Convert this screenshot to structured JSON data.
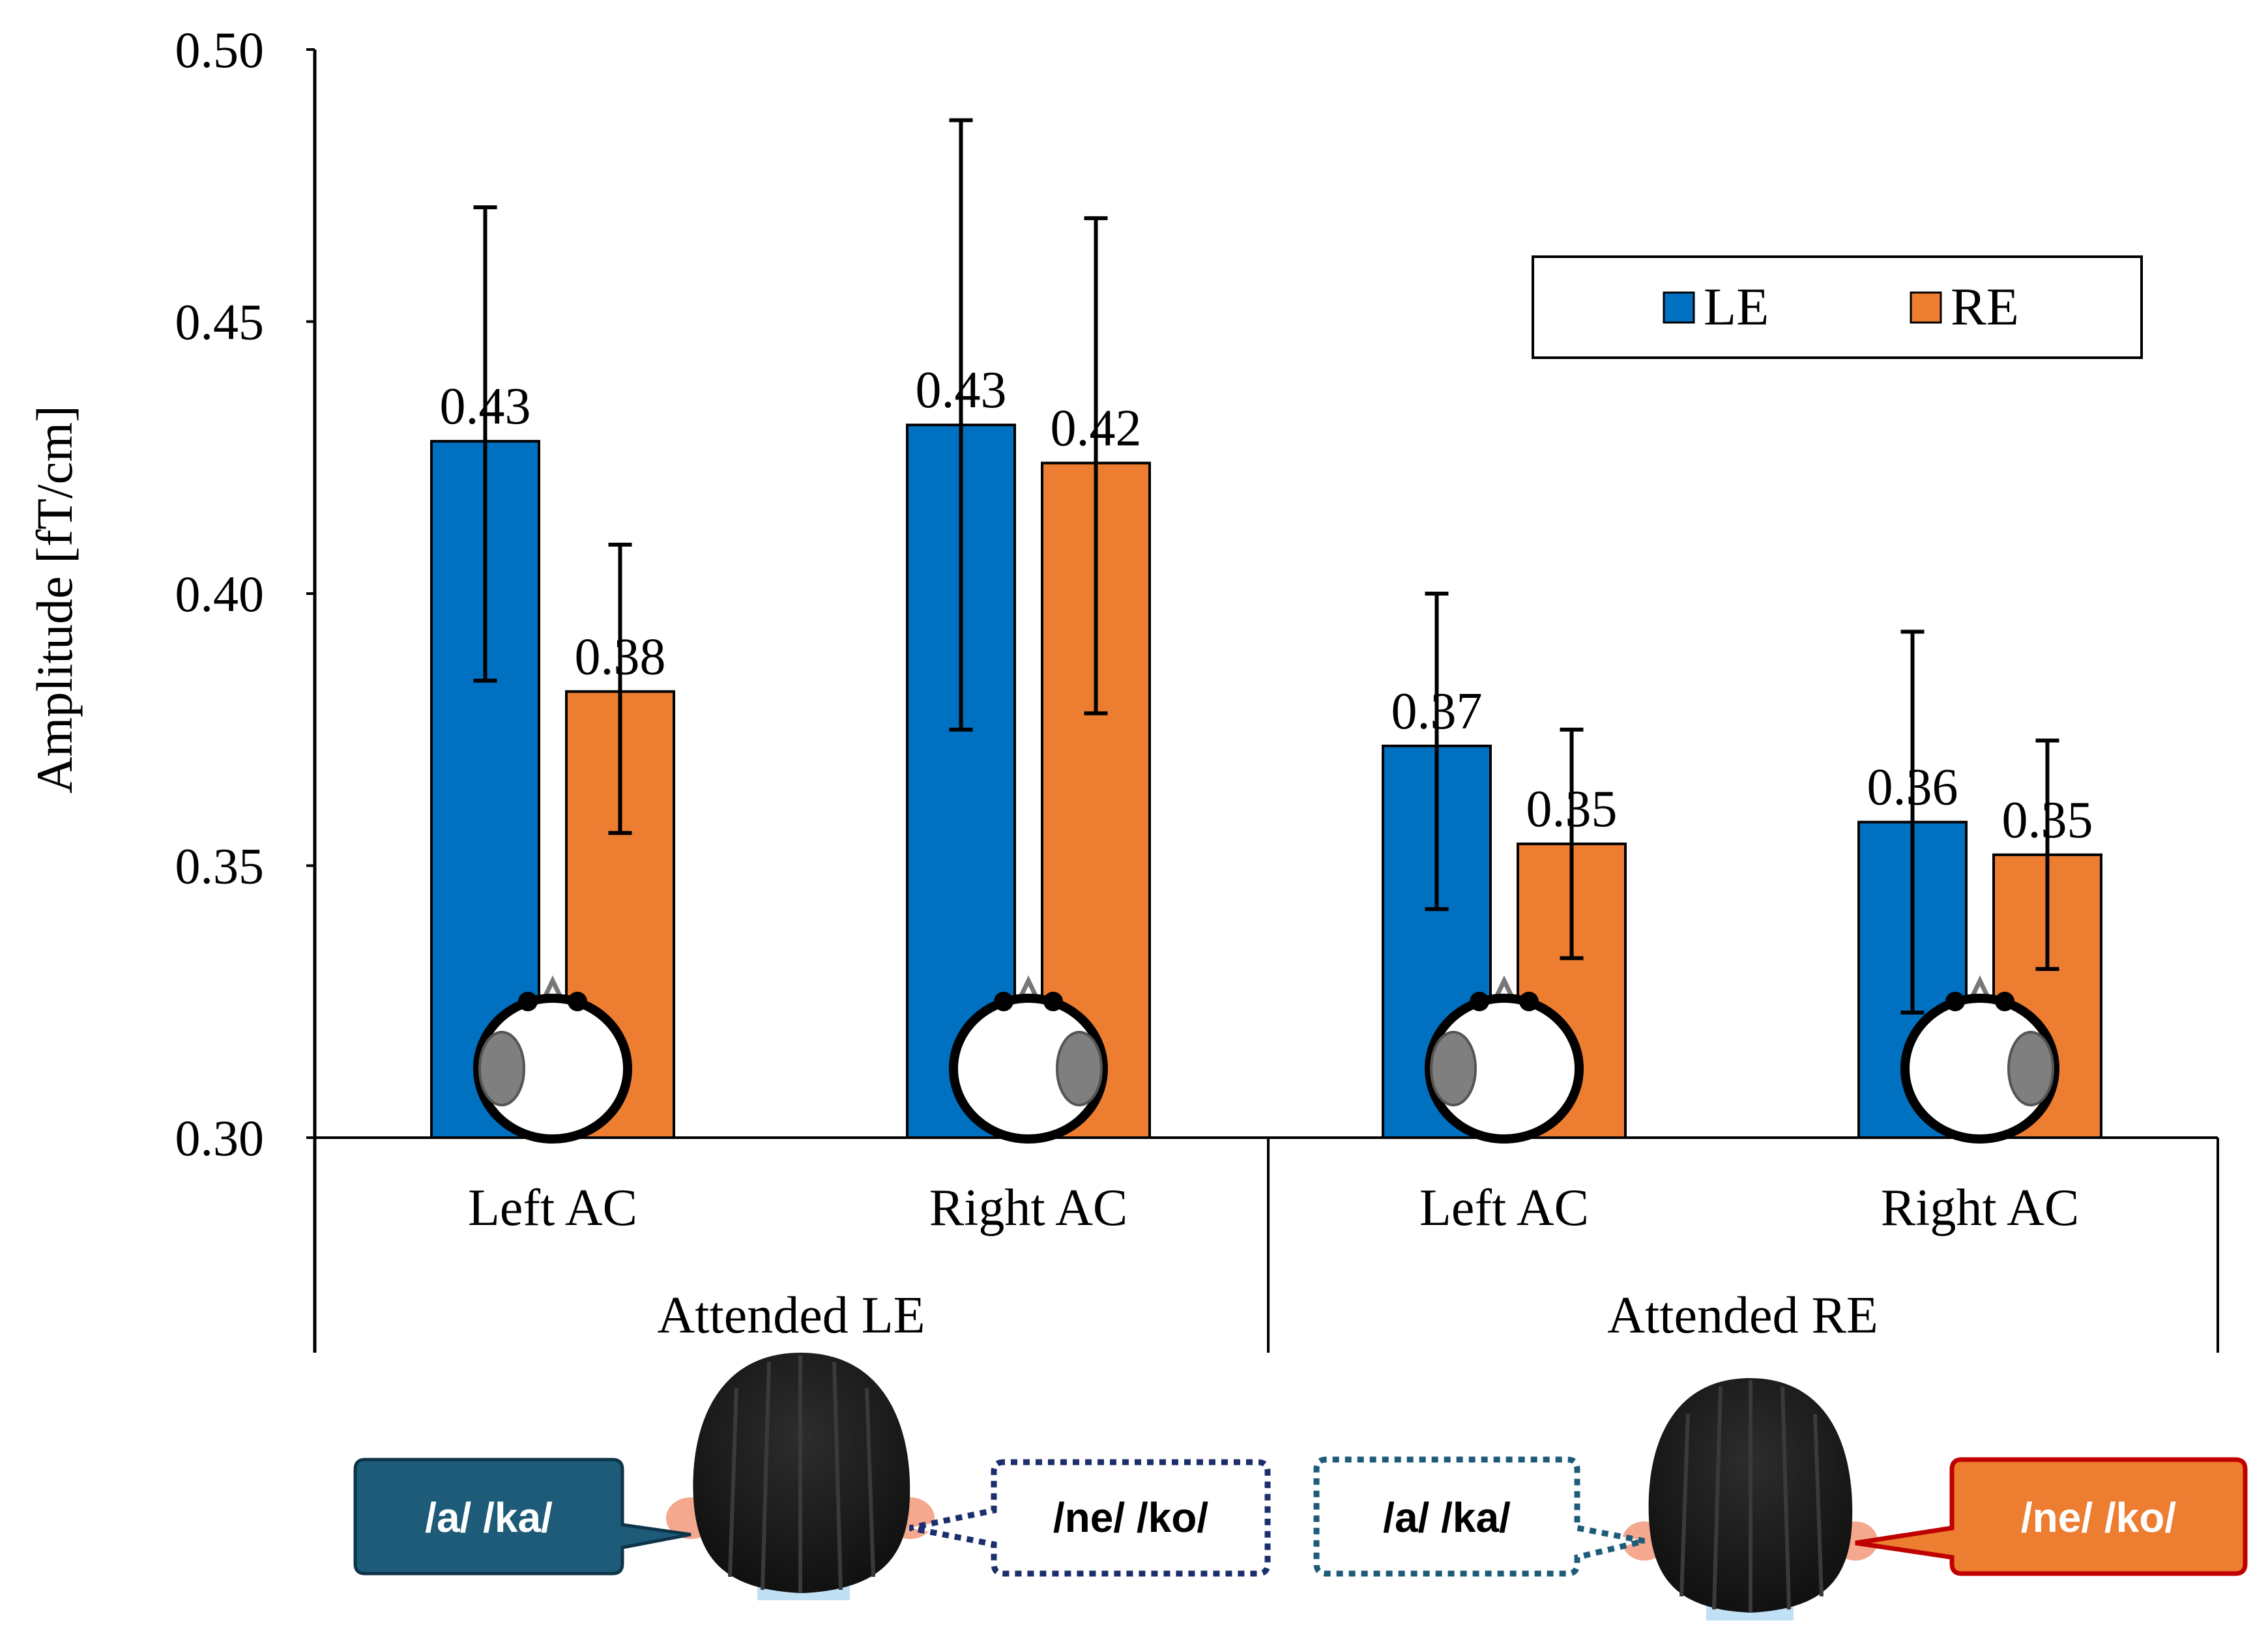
{
  "chart_data": {
    "type": "bar",
    "ylabel": "Amplitude [fT/cm]",
    "ylim": [
      0.3,
      0.5
    ],
    "yticks": [
      "0.30",
      "0.35",
      "0.40",
      "0.45",
      "0.50"
    ],
    "ytick_values": [
      0.3,
      0.35,
      0.4,
      0.45,
      0.5
    ],
    "categories": [
      "Left AC",
      "Right AC",
      "Left AC",
      "Right AC"
    ],
    "groups": [
      "Attended LE",
      "Attended RE"
    ],
    "legend_position": "top-right",
    "series": [
      {
        "name": "LE",
        "color": "#0070c0",
        "values": [
          0.428,
          0.431,
          0.372,
          0.358
        ],
        "labels": [
          "0.43",
          "0.43",
          "0.37",
          "0.36"
        ],
        "err_low": [
          0.384,
          0.375,
          0.342,
          0.323
        ],
        "err_high": [
          0.471,
          0.487,
          0.4,
          0.393
        ]
      },
      {
        "name": "RE",
        "color": "#ed7d31",
        "values": [
          0.382,
          0.424,
          0.354,
          0.352
        ],
        "labels": [
          "0.38",
          "0.42",
          "0.35",
          "0.35"
        ],
        "err_low": [
          0.356,
          0.378,
          0.333,
          0.331
        ],
        "err_high": [
          0.409,
          0.469,
          0.375,
          0.373
        ]
      }
    ],
    "head_icons": [
      "left-hemisphere",
      "right-hemisphere",
      "left-hemisphere",
      "right-hemisphere"
    ]
  },
  "illustration": {
    "left": {
      "attended_bubble": "/a/ /ka/",
      "ignored_bubble": "/ne/ /ko/",
      "attended_color": "#1d5b79",
      "ignored_color": "#1c2e6b"
    },
    "right": {
      "ignored_bubble": "/a/ /ka/",
      "attended_bubble": "/ne/ /ko/",
      "attended_color": "#ed7d31",
      "ignored_color": "#1d5b79",
      "attended_border": "#c00000"
    }
  }
}
